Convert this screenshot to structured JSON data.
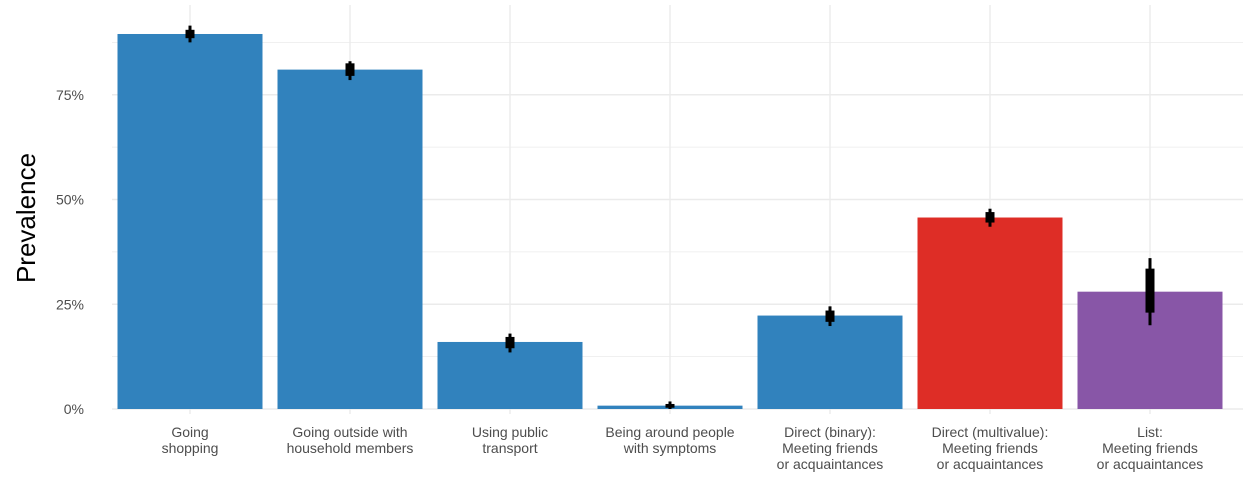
{
  "chart_data": {
    "type": "bar",
    "title": "",
    "xlabel": "",
    "ylabel": "Prevalence",
    "ylim": [
      0,
      95
    ],
    "yticks": [
      0,
      25,
      50,
      75
    ],
    "ytick_labels": [
      "0%",
      "25%",
      "50%",
      "75%"
    ],
    "grid": true,
    "legend": "none",
    "categories": [
      [
        "Going",
        "shopping"
      ],
      [
        "Going outside with",
        "household members"
      ],
      [
        "Using public",
        "transport"
      ],
      [
        "Being around people",
        "with symptoms"
      ],
      [
        "Direct (binary):",
        "Meeting friends",
        "or acquaintances"
      ],
      [
        "Direct (multivalue):",
        "Meeting friends",
        "or acquaintances"
      ],
      [
        "List:",
        "Meeting friends",
        "or acquaintances"
      ]
    ],
    "values": [
      89.5,
      81.0,
      16.0,
      0.8,
      22.3,
      45.7,
      28.0
    ],
    "error_intervals": [
      {
        "outer": [
          87.5,
          91.5
        ],
        "inner": [
          88.5,
          90.5
        ]
      },
      {
        "outer": [
          78.5,
          83.0
        ],
        "inner": [
          79.5,
          82.5
        ]
      },
      {
        "outer": [
          13.5,
          18.0
        ],
        "inner": [
          14.5,
          17.2
        ]
      },
      {
        "outer": [
          0.0,
          1.8
        ],
        "inner": [
          0.3,
          1.2
        ]
      },
      {
        "outer": [
          19.8,
          24.5
        ],
        "inner": [
          20.8,
          23.5
        ]
      },
      {
        "outer": [
          43.5,
          47.8
        ],
        "inner": [
          44.5,
          47.0
        ]
      },
      {
        "outer": [
          20.0,
          36.0
        ],
        "inner": [
          23.0,
          33.5
        ]
      }
    ],
    "bar_colors": [
      "#3182bd",
      "#3182bd",
      "#3182bd",
      "#3182bd",
      "#3182bd",
      "#de2d26",
      "#8856a7"
    ]
  }
}
